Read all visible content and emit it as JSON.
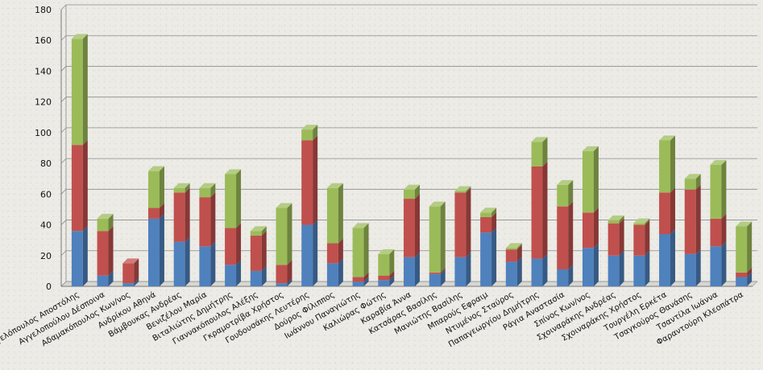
{
  "chart_data": {
    "type": "bar",
    "stacked": true,
    "three_d": true,
    "title": "",
    "xlabel": "",
    "ylabel": "",
    "ylim": [
      0,
      180
    ],
    "yticks": [
      0,
      20,
      40,
      60,
      80,
      100,
      120,
      140,
      160,
      180
    ],
    "grid": true,
    "legend": "none",
    "categories": [
      "Αγγελόπουλος Αποστόλης",
      "Αγγελοπούλου Δέσποινα",
      "Αδαμακόπουλος Κων/νος",
      "Ανδρίκου Αθηνά",
      "Βάμβουκας Ανδρέας",
      "Βενιζέλου Μαρία",
      "Βιταλιώτης Δημήτρης",
      "Γιαννακόπουλος Αλέξης",
      "Γκραμοτρίβα Χρήστος",
      "Γουδουσάκης Λευτέρης",
      "Δούρος Φίλιππος",
      "Ιωάννου Παναγιώτης",
      "Καλιώρας Φώτης",
      "Καραβία Άννα",
      "Κατσάρας Βασίλης",
      "Μανιώτης Βασίλης",
      "Μπαρούς Εφραιμ",
      "Ντυμένος Σταύρος",
      "Παπαγεωργίου Δημήτρης",
      "Ράγια Αναστασία",
      "Σπίνος Κων/νος",
      "Σχοιναράκης Ανδρέας",
      "Σχοιναράκης Χρήστος",
      "Τουργέλη Ερκέτα",
      "Τσαγκούρος Θανάσης",
      "Τσαντίλα Ιωάννα",
      "Φαραντούρη Κλεοπάτρα"
    ],
    "series": [
      {
        "color": "#4f81bd",
        "values": [
          36,
          7,
          2,
          44,
          29,
          26,
          14,
          10,
          2,
          40,
          15,
          3,
          4,
          19,
          8,
          19,
          35,
          16,
          18,
          11,
          25,
          20,
          20,
          34,
          21,
          26,
          6
        ]
      },
      {
        "color": "#c0504d",
        "values": [
          56,
          29,
          13,
          7,
          32,
          32,
          24,
          23,
          12,
          55,
          13,
          3,
          3,
          38,
          1,
          42,
          10,
          8,
          60,
          41,
          23,
          21,
          20,
          27,
          42,
          18,
          3
        ]
      },
      {
        "color": "#9bbb59",
        "values": [
          69,
          8,
          0,
          24,
          3,
          6,
          35,
          3,
          37,
          7,
          36,
          32,
          14,
          6,
          43,
          1,
          3,
          1,
          16,
          14,
          40,
          2,
          1,
          34,
          7,
          35,
          30
        ]
      }
    ]
  }
}
